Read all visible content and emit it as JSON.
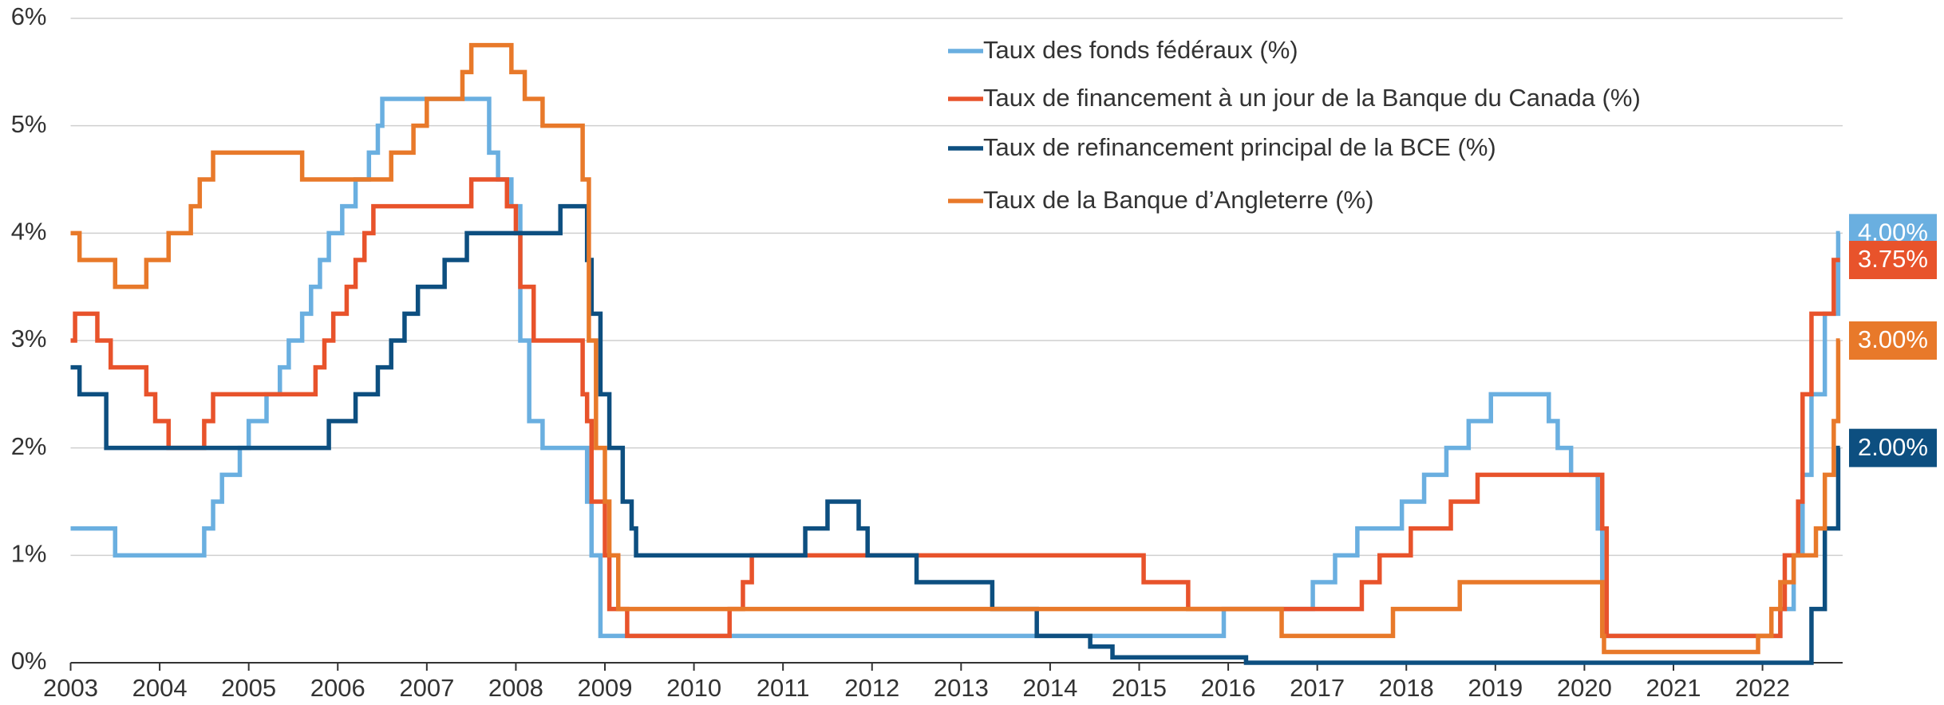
{
  "chart_data": {
    "type": "line",
    "step": "post",
    "xlim": [
      2003,
      2022.9
    ],
    "xticks": [
      2003,
      2004,
      2005,
      2006,
      2007,
      2008,
      2009,
      2010,
      2011,
      2012,
      2013,
      2014,
      2015,
      2016,
      2017,
      2018,
      2019,
      2020,
      2021,
      2022
    ],
    "ylim": [
      0,
      6
    ],
    "yticks": [
      {
        "value": 0,
        "label": "0%"
      },
      {
        "value": 1,
        "label": "1%"
      },
      {
        "value": 2,
        "label": "2%"
      },
      {
        "value": 3,
        "label": "3%"
      },
      {
        "value": 4,
        "label": "4%"
      },
      {
        "value": 5,
        "label": "5%"
      },
      {
        "value": 6,
        "label": "6%"
      }
    ],
    "grid": true,
    "legend": "top",
    "series": [
      {
        "name": "Taux des fonds fédéraux (%)",
        "color": "#6aafe0",
        "value_label": "4.00%",
        "x": [
          2003.0,
          2003.5,
          2004.5,
          2004.6,
          2004.7,
          2004.9,
          2005.0,
          2005.2,
          2005.35,
          2005.45,
          2005.6,
          2005.7,
          2005.8,
          2005.9,
          2006.05,
          2006.2,
          2006.35,
          2006.45,
          2006.5,
          2007.7,
          2007.8,
          2007.95,
          2008.05,
          2008.15,
          2008.3,
          2008.8,
          2008.85,
          2008.95,
          2015.95,
          2016.95,
          2017.2,
          2017.45,
          2017.95,
          2018.2,
          2018.45,
          2018.7,
          2018.95,
          2019.6,
          2019.7,
          2019.85,
          2020.15,
          2020.2,
          2022.2,
          2022.35,
          2022.45,
          2022.55,
          2022.7,
          2022.85,
          2022.87
        ],
        "values": [
          1.25,
          1.0,
          1.25,
          1.5,
          1.75,
          2.0,
          2.25,
          2.5,
          2.75,
          3.0,
          3.25,
          3.5,
          3.75,
          4.0,
          4.25,
          4.5,
          4.75,
          5.0,
          5.25,
          4.75,
          4.5,
          4.25,
          3.0,
          2.25,
          2.0,
          1.5,
          1.0,
          0.25,
          0.5,
          0.75,
          1.0,
          1.25,
          1.5,
          1.75,
          2.0,
          2.25,
          2.5,
          2.25,
          2.0,
          1.75,
          1.25,
          0.25,
          0.5,
          1.0,
          1.75,
          2.5,
          3.25,
          4.0,
          4.0
        ]
      },
      {
        "name": "Taux de financement à un jour de la Banque du Canada (%)",
        "color": "#e8532b",
        "value_label": "3.75%",
        "x": [
          2003.0,
          2003.05,
          2003.3,
          2003.45,
          2003.85,
          2003.95,
          2004.1,
          2004.5,
          2004.6,
          2005.75,
          2005.85,
          2005.95,
          2006.1,
          2006.2,
          2006.3,
          2006.4,
          2007.5,
          2007.9,
          2008.0,
          2008.05,
          2008.2,
          2008.75,
          2008.8,
          2008.85,
          2009.0,
          2009.05,
          2009.25,
          2010.4,
          2010.55,
          2010.65,
          2015.05,
          2015.55,
          2017.5,
          2017.7,
          2018.05,
          2018.5,
          2018.8,
          2020.2,
          2020.25,
          2022.2,
          2022.25,
          2022.4,
          2022.45,
          2022.55,
          2022.8,
          2022.87
        ],
        "values": [
          3.0,
          3.25,
          3.0,
          2.75,
          2.5,
          2.25,
          2.0,
          2.25,
          2.5,
          2.75,
          3.0,
          3.25,
          3.5,
          3.75,
          4.0,
          4.25,
          4.5,
          4.25,
          4.0,
          3.5,
          3.0,
          2.5,
          2.25,
          1.5,
          1.0,
          0.5,
          0.25,
          0.5,
          0.75,
          1.0,
          0.75,
          0.5,
          0.75,
          1.0,
          1.25,
          1.5,
          1.75,
          1.25,
          0.25,
          0.5,
          1.0,
          1.5,
          2.5,
          3.25,
          3.75,
          3.75
        ]
      },
      {
        "name": "Taux de refinancement principal de la BCE (%)",
        "color": "#0d4f80",
        "value_label": "2.00%",
        "x": [
          2003.0,
          2003.1,
          2003.4,
          2005.9,
          2006.2,
          2006.45,
          2006.6,
          2006.75,
          2006.9,
          2007.2,
          2007.45,
          2008.5,
          2008.8,
          2008.85,
          2008.95,
          2009.05,
          2009.2,
          2009.3,
          2009.35,
          2011.25,
          2011.5,
          2011.85,
          2011.95,
          2012.5,
          2013.35,
          2013.85,
          2014.45,
          2014.7,
          2016.2,
          2022.55,
          2022.7,
          2022.85,
          2022.87
        ],
        "values": [
          2.75,
          2.5,
          2.0,
          2.25,
          2.5,
          2.75,
          3.0,
          3.25,
          3.5,
          3.75,
          4.0,
          4.25,
          3.75,
          3.25,
          2.5,
          2.0,
          1.5,
          1.25,
          1.0,
          1.25,
          1.5,
          1.25,
          1.0,
          0.75,
          0.5,
          0.25,
          0.15,
          0.05,
          0.0,
          0.5,
          1.25,
          2.0,
          2.0
        ]
      },
      {
        "name": "Taux de la Banque d’Angleterre (%)",
        "color": "#e8792a",
        "value_label": "3.00%",
        "x": [
          2003.0,
          2003.1,
          2003.5,
          2003.85,
          2004.1,
          2004.35,
          2004.45,
          2004.6,
          2005.6,
          2006.6,
          2006.85,
          2007.0,
          2007.4,
          2007.5,
          2007.95,
          2008.1,
          2008.3,
          2008.75,
          2008.82,
          2008.9,
          2009.0,
          2009.05,
          2009.15,
          2016.6,
          2017.85,
          2018.6,
          2020.2,
          2020.22,
          2021.95,
          2022.1,
          2022.2,
          2022.35,
          2022.6,
          2022.7,
          2022.8,
          2022.85,
          2022.87
        ],
        "values": [
          4.0,
          3.75,
          3.5,
          3.75,
          4.0,
          4.25,
          4.5,
          4.75,
          4.5,
          4.75,
          5.0,
          5.25,
          5.5,
          5.75,
          5.5,
          5.25,
          5.0,
          4.5,
          3.0,
          2.0,
          1.5,
          1.0,
          0.5,
          0.25,
          0.5,
          0.75,
          0.25,
          0.1,
          0.25,
          0.5,
          0.75,
          1.0,
          1.25,
          1.75,
          2.25,
          3.0,
          3.0
        ]
      }
    ]
  }
}
